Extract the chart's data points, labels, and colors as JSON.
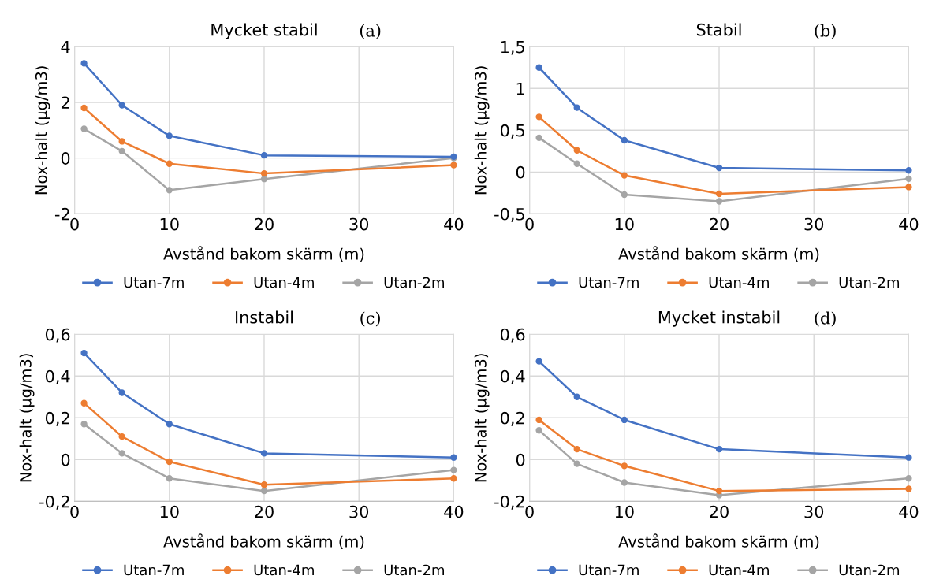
{
  "chart_data": [
    {
      "type": "line",
      "title": "Mycket stabil",
      "xlabel": "Avstånd bakom skärm (m)",
      "ylabel": "Nox-halt (µg/m3)",
      "annotations": [
        "(a)"
      ],
      "x": [
        1,
        5,
        10,
        20,
        40
      ],
      "xlim": [
        0,
        40
      ],
      "xticks": [
        0,
        10,
        20,
        30,
        40
      ],
      "ylim": [
        -2,
        4
      ],
      "yticks": [
        -2,
        0,
        2,
        4
      ],
      "grid": true,
      "legend": "bottom",
      "marker": "circle",
      "series": [
        {
          "name": "Utan-7m",
          "color": "#4472c4",
          "values": [
            3.4,
            1.9,
            0.8,
            0.1,
            0.05
          ]
        },
        {
          "name": "Utan-4m",
          "color": "#ed7d31",
          "values": [
            1.8,
            0.6,
            -0.2,
            -0.55,
            -0.25
          ]
        },
        {
          "name": "Utan-2m",
          "color": "#a5a5a5",
          "values": [
            1.05,
            0.25,
            -1.15,
            -0.75,
            0.0
          ]
        }
      ]
    },
    {
      "type": "line",
      "title": "Stabil",
      "xlabel": "Avstånd bakom skärm (m)",
      "ylabel": "Nox-halt (µg/m3)",
      "annotations": [
        "(b)"
      ],
      "x": [
        1,
        5,
        10,
        20,
        40
      ],
      "xlim": [
        0,
        40
      ],
      "xticks": [
        0,
        10,
        20,
        30,
        40
      ],
      "ylim": [
        -0.5,
        1.5
      ],
      "yticks": [
        {
          "value": -0.5,
          "label": "-0,5"
        },
        0,
        {
          "value": 0.5,
          "label": "0,5"
        },
        1,
        {
          "value": 1.5,
          "label": "1,5"
        }
      ],
      "grid": true,
      "legend": "bottom",
      "marker": "circle",
      "series": [
        {
          "name": "Utan-7m",
          "color": "#4472c4",
          "values": [
            1.25,
            0.77,
            0.38,
            0.05,
            0.02
          ]
        },
        {
          "name": "Utan-4m",
          "color": "#ed7d31",
          "values": [
            0.66,
            0.26,
            -0.04,
            -0.26,
            -0.18
          ]
        },
        {
          "name": "Utan-2m",
          "color": "#a5a5a5",
          "values": [
            0.41,
            0.1,
            -0.27,
            -0.35,
            -0.08
          ]
        }
      ]
    },
    {
      "type": "line",
      "title": "Instabil",
      "xlabel": "Avstånd bakom skärm (m)",
      "ylabel": "Nox-halt (µg/m3)",
      "annotations": [
        "(c)"
      ],
      "x": [
        1,
        5,
        10,
        20,
        40
      ],
      "xlim": [
        0,
        40
      ],
      "xticks": [
        0,
        10,
        20,
        30,
        40
      ],
      "ylim": [
        -0.2,
        0.6
      ],
      "yticks": [
        {
          "value": -0.2,
          "label": "-0,2"
        },
        0,
        {
          "value": 0.2,
          "label": "0,2"
        },
        {
          "value": 0.4,
          "label": "0,4"
        },
        {
          "value": 0.6,
          "label": "0,6"
        }
      ],
      "grid": true,
      "legend": "bottom",
      "marker": "circle",
      "series": [
        {
          "name": "Utan-7m",
          "color": "#4472c4",
          "values": [
            0.51,
            0.32,
            0.17,
            0.03,
            0.01
          ]
        },
        {
          "name": "Utan-4m",
          "color": "#ed7d31",
          "values": [
            0.27,
            0.11,
            -0.01,
            -0.12,
            -0.09
          ]
        },
        {
          "name": "Utan-2m",
          "color": "#a5a5a5",
          "values": [
            0.17,
            0.03,
            -0.09,
            -0.15,
            -0.05
          ]
        }
      ]
    },
    {
      "type": "line",
      "title": "Mycket instabil",
      "xlabel": "Avstånd bakom skärm (m)",
      "ylabel": "Nox-halt (µg/m3)",
      "annotations": [
        "(d)"
      ],
      "x": [
        1,
        5,
        10,
        20,
        40
      ],
      "xlim": [
        0,
        40
      ],
      "xticks": [
        0,
        10,
        20,
        30,
        40
      ],
      "ylim": [
        -0.2,
        0.6
      ],
      "yticks": [
        {
          "value": -0.2,
          "label": "-0,2"
        },
        0,
        {
          "value": 0.2,
          "label": "0,2"
        },
        {
          "value": 0.4,
          "label": "0,4"
        },
        {
          "value": 0.6,
          "label": "0,6"
        }
      ],
      "grid": true,
      "legend": "bottom",
      "marker": "circle",
      "series": [
        {
          "name": "Utan-7m",
          "color": "#4472c4",
          "values": [
            0.47,
            0.3,
            0.19,
            0.05,
            0.01
          ]
        },
        {
          "name": "Utan-4m",
          "color": "#ed7d31",
          "values": [
            0.19,
            0.05,
            -0.03,
            -0.15,
            -0.14
          ]
        },
        {
          "name": "Utan-2m",
          "color": "#a5a5a5",
          "values": [
            0.14,
            -0.02,
            -0.11,
            -0.17,
            -0.09
          ]
        }
      ]
    }
  ]
}
